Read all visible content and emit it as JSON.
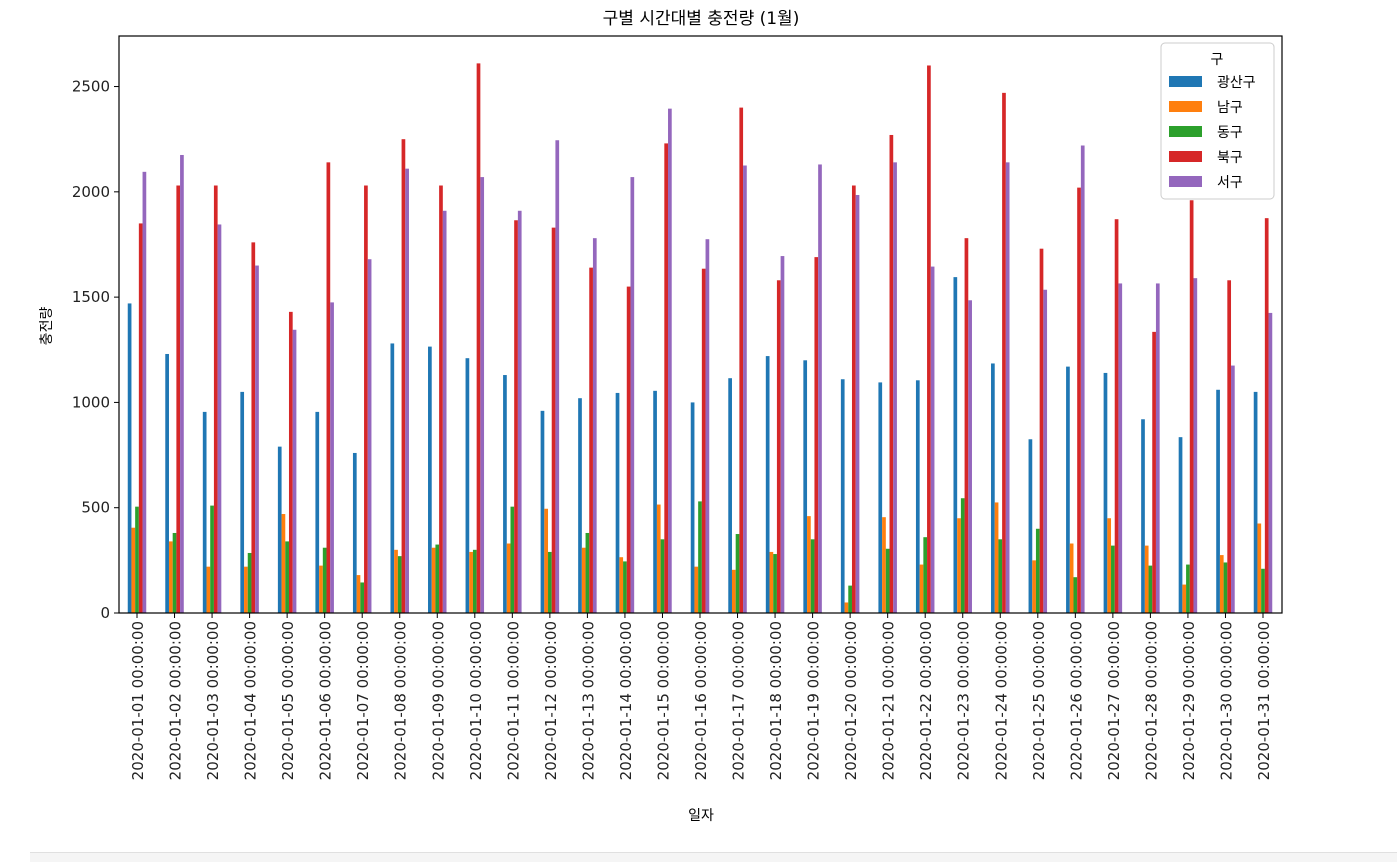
{
  "chart_data": {
    "type": "bar",
    "title": "구별 시간대별 충전량 (1월)",
    "xlabel": "일자",
    "ylabel": "충전량",
    "ylim": [
      0,
      2740
    ],
    "yticks": [
      0,
      500,
      1000,
      1500,
      2000,
      2500
    ],
    "grid": false,
    "legend_title": "구",
    "legend_position": "top-right",
    "categories": [
      "2020-01-01 00:00:00",
      "2020-01-02 00:00:00",
      "2020-01-03 00:00:00",
      "2020-01-04 00:00:00",
      "2020-01-05 00:00:00",
      "2020-01-06 00:00:00",
      "2020-01-07 00:00:00",
      "2020-01-08 00:00:00",
      "2020-01-09 00:00:00",
      "2020-01-10 00:00:00",
      "2020-01-11 00:00:00",
      "2020-01-12 00:00:00",
      "2020-01-13 00:00:00",
      "2020-01-14 00:00:00",
      "2020-01-15 00:00:00",
      "2020-01-16 00:00:00",
      "2020-01-17 00:00:00",
      "2020-01-18 00:00:00",
      "2020-01-19 00:00:00",
      "2020-01-20 00:00:00",
      "2020-01-21 00:00:00",
      "2020-01-22 00:00:00",
      "2020-01-23 00:00:00",
      "2020-01-24 00:00:00",
      "2020-01-25 00:00:00",
      "2020-01-26 00:00:00",
      "2020-01-27 00:00:00",
      "2020-01-28 00:00:00",
      "2020-01-29 00:00:00",
      "2020-01-30 00:00:00",
      "2020-01-31 00:00:00"
    ],
    "series": [
      {
        "name": "광산구",
        "color": "#1f77b4",
        "values": [
          1470,
          1230,
          955,
          1050,
          790,
          955,
          760,
          1280,
          1265,
          1210,
          1130,
          960,
          1020,
          1045,
          1055,
          1000,
          1115,
          1220,
          1200,
          1110,
          1095,
          1105,
          1595,
          1185,
          825,
          1170,
          1140,
          920,
          835,
          1060,
          1050
        ]
      },
      {
        "name": "남구",
        "color": "#ff7f0e",
        "values": [
          405,
          340,
          220,
          220,
          470,
          225,
          180,
          300,
          310,
          290,
          330,
          495,
          310,
          265,
          515,
          220,
          205,
          290,
          460,
          50,
          455,
          230,
          450,
          525,
          250,
          330,
          450,
          320,
          135,
          275,
          425
        ]
      },
      {
        "name": "동구",
        "color": "#2ca02c",
        "values": [
          505,
          380,
          510,
          285,
          340,
          310,
          145,
          270,
          325,
          300,
          505,
          290,
          380,
          245,
          350,
          530,
          375,
          280,
          350,
          130,
          305,
          360,
          545,
          350,
          400,
          170,
          320,
          225,
          230,
          240,
          210
        ]
      },
      {
        "name": "북구",
        "color": "#d62728",
        "values": [
          1850,
          2030,
          2030,
          1760,
          1430,
          2140,
          2030,
          2250,
          2030,
          2610,
          1865,
          1830,
          1640,
          1550,
          2230,
          1635,
          2400,
          1580,
          1690,
          2030,
          2270,
          2600,
          1780,
          2470,
          1730,
          2020,
          1870,
          1335,
          1960,
          1580,
          1875
        ]
      },
      {
        "name": "서구",
        "color": "#9467bd",
        "values": [
          2095,
          2175,
          1845,
          1650,
          1345,
          1475,
          1680,
          2110,
          1910,
          2070,
          1910,
          2245,
          1780,
          2070,
          2395,
          1775,
          2125,
          1695,
          2130,
          1985,
          2140,
          1645,
          1485,
          2140,
          1535,
          2220,
          1565,
          1565,
          1590,
          1175,
          1425
        ]
      }
    ]
  }
}
